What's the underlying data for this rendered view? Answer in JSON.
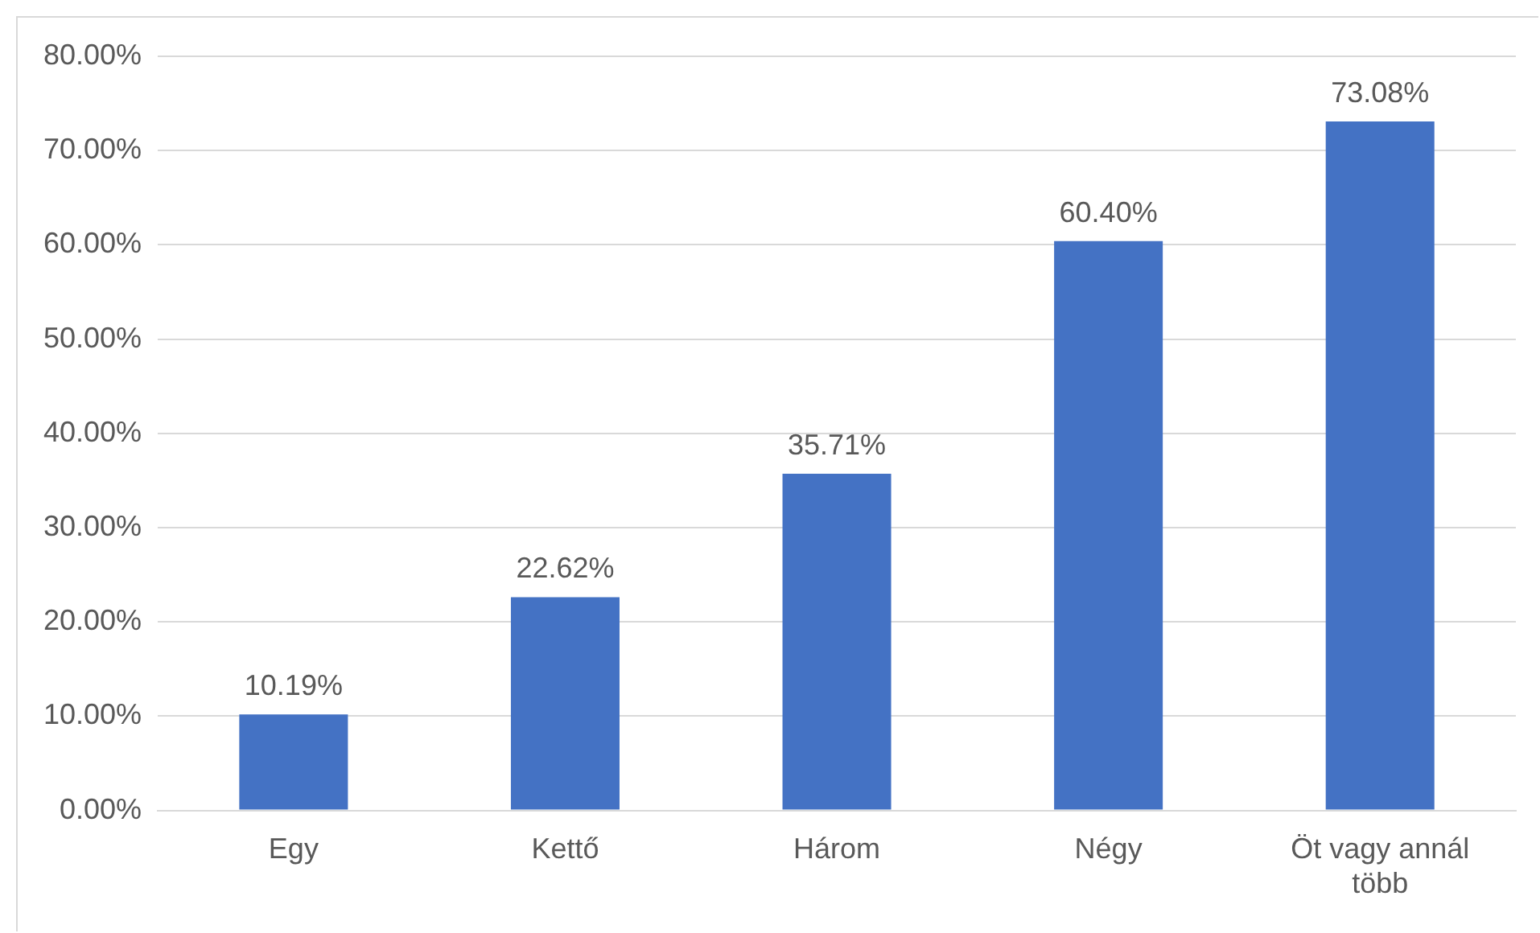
{
  "chart_data": {
    "type": "bar",
    "categories": [
      "Egy",
      "Kettő",
      "Három",
      "Négy",
      "Öt vagy annál több"
    ],
    "values": [
      10.19,
      22.62,
      35.71,
      60.4,
      73.08
    ],
    "color": "#4472c4",
    "value_labels": [
      "10.19%",
      "22.62%",
      "35.71%",
      "60.40%",
      "73.08%"
    ],
    "ylim": [
      0,
      80
    ],
    "yticks": [
      {
        "value": 0,
        "label": "0.00%"
      },
      {
        "value": 10,
        "label": "10.00%"
      },
      {
        "value": 20,
        "label": "20.00%"
      },
      {
        "value": 30,
        "label": "30.00%"
      },
      {
        "value": 40,
        "label": "40.00%"
      },
      {
        "value": 50,
        "label": "50.00%"
      },
      {
        "value": 60,
        "label": "60.00%"
      },
      {
        "value": 70,
        "label": "70.00%"
      },
      {
        "value": 80,
        "label": "80.00%"
      }
    ],
    "grid": "y",
    "legend": false
  }
}
